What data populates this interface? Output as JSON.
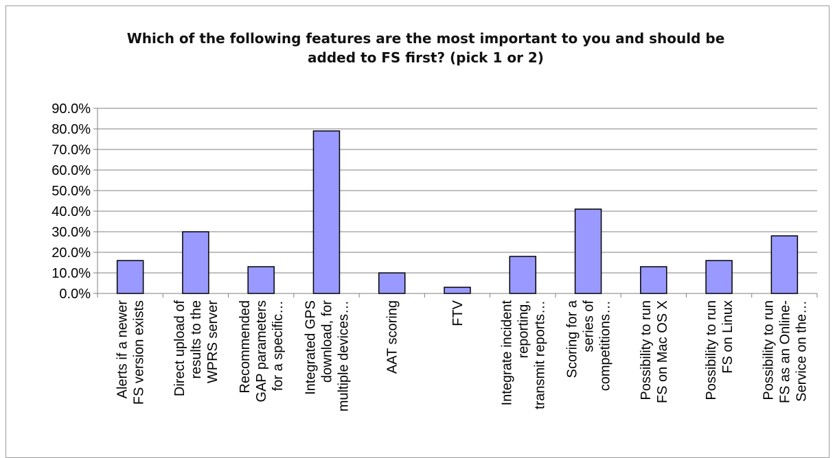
{
  "chart_data": {
    "type": "bar",
    "title_lines": [
      "Which of the following features are the most important to you and should be",
      "added to FS first? (pick 1 or 2)"
    ],
    "xlabel": "",
    "ylabel": "",
    "ylim": [
      0,
      90
    ],
    "y_tick_labels": [
      "0.0%",
      "10.0%",
      "20.0%",
      "30.0%",
      "40.0%",
      "50.0%",
      "60.0%",
      "70.0%",
      "80.0%",
      "90.0%"
    ],
    "grid": true,
    "legend": "none",
    "bar_color": "#9999ff",
    "bar_stroke": "#000000",
    "gridline_color": "#7f7f7f",
    "categories": [
      [
        "Alerts if a newer",
        "FS version exists"
      ],
      [
        "Direct upload of",
        "results to the",
        "WPRS server"
      ],
      [
        "Recommended",
        "GAP parameters",
        "for a specific…"
      ],
      [
        "Integrated GPS",
        "download, for",
        "multiple devices…"
      ],
      [
        "AAT scoring"
      ],
      [
        "FTV"
      ],
      [
        "Integrate incident",
        "reporting,",
        "transmit reports…"
      ],
      [
        "Scoring for a",
        "series of",
        "competitions…"
      ],
      [
        "Possibility to run",
        "FS on Mac OS X"
      ],
      [
        "Possibility to run",
        "FS on Linux"
      ],
      [
        "Possibility to run",
        "FS as an Online-",
        "Service on the…"
      ]
    ],
    "values": [
      16,
      30,
      13,
      79,
      10,
      3,
      18,
      41,
      13,
      16,
      28
    ]
  }
}
